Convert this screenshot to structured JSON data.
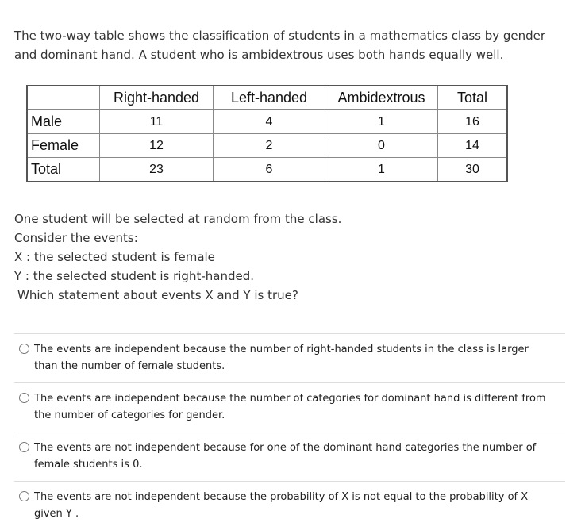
{
  "intro": "The two-way table shows the classification of students in a mathematics class by gender and dominant hand. A student who is ambidextrous uses both hands equally well.",
  "table": {
    "header": [
      "",
      "Right-handed",
      "Left-handed",
      "Ambidextrous",
      "Total"
    ],
    "rows": [
      [
        "Male",
        11,
        4,
        1,
        16
      ],
      [
        "Female",
        12,
        2,
        0,
        14
      ],
      [
        "Total",
        23,
        6,
        1,
        30
      ]
    ]
  },
  "question": [
    "One student will be selected at random from the class.",
    "Consider the events:",
    "X : the selected student is female",
    "Y : the selected student is right-handed.",
    "Which statement about events X and Y is true?"
  ],
  "options": [
    "The events are independent because the number of right-handed students in the class is larger than the number of female students.",
    "The events are independent because the number of categories for dominant hand is different from the number of categories for gender.",
    "The events are not independent because for one of the dominant hand categories the number of female students is 0.",
    "The events are not independent because the probability of X is not equal to the probability of X given Y ."
  ]
}
